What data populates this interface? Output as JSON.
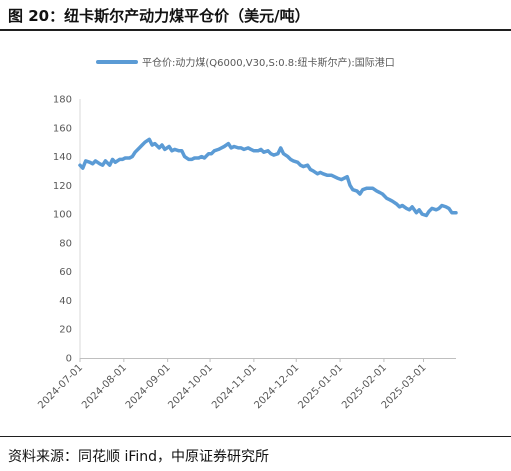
{
  "header": {
    "title": "图 20：纽卡斯尔产动力煤平仓价（美元/吨）"
  },
  "footer": {
    "source": "资料来源：同花顺 iFind，中原证券研究所"
  },
  "chart_data": {
    "type": "line",
    "series": [
      {
        "name": "平仓价:动力煤(Q6000,V30,S:0.8:纽卡斯尔产):国际港口",
        "color": "#5b9bd5",
        "points": [
          [
            "2024-07-01",
            134
          ],
          [
            "2024-07-03",
            132
          ],
          [
            "2024-07-05",
            137
          ],
          [
            "2024-07-08",
            136
          ],
          [
            "2024-07-10",
            135
          ],
          [
            "2024-07-12",
            137
          ],
          [
            "2024-07-15",
            135
          ],
          [
            "2024-07-17",
            134
          ],
          [
            "2024-07-19",
            137
          ],
          [
            "2024-07-22",
            134
          ],
          [
            "2024-07-24",
            138
          ],
          [
            "2024-07-26",
            136
          ],
          [
            "2024-07-29",
            138
          ],
          [
            "2024-07-31",
            138
          ],
          [
            "2024-08-02",
            139
          ],
          [
            "2024-08-05",
            139
          ],
          [
            "2024-08-07",
            140
          ],
          [
            "2024-08-09",
            143
          ],
          [
            "2024-08-12",
            146
          ],
          [
            "2024-08-14",
            148
          ],
          [
            "2024-08-16",
            150
          ],
          [
            "2024-08-19",
            152
          ],
          [
            "2024-08-21",
            148
          ],
          [
            "2024-08-23",
            149
          ],
          [
            "2024-08-26",
            146
          ],
          [
            "2024-08-28",
            148
          ],
          [
            "2024-08-30",
            145
          ],
          [
            "2024-09-02",
            147
          ],
          [
            "2024-09-04",
            144
          ],
          [
            "2024-09-06",
            145
          ],
          [
            "2024-09-09",
            144
          ],
          [
            "2024-09-11",
            144
          ],
          [
            "2024-09-13",
            140
          ],
          [
            "2024-09-16",
            138
          ],
          [
            "2024-09-18",
            138
          ],
          [
            "2024-09-20",
            139
          ],
          [
            "2024-09-23",
            139
          ],
          [
            "2024-09-25",
            140
          ],
          [
            "2024-09-27",
            139
          ],
          [
            "2024-09-30",
            142
          ],
          [
            "2024-10-02",
            142
          ],
          [
            "2024-10-04",
            144
          ],
          [
            "2024-10-07",
            145
          ],
          [
            "2024-10-09",
            146
          ],
          [
            "2024-10-11",
            147
          ],
          [
            "2024-10-14",
            149
          ],
          [
            "2024-10-16",
            146
          ],
          [
            "2024-10-18",
            147
          ],
          [
            "2024-10-21",
            146
          ],
          [
            "2024-10-23",
            146
          ],
          [
            "2024-10-25",
            145
          ],
          [
            "2024-10-28",
            146
          ],
          [
            "2024-10-30",
            145
          ],
          [
            "2024-11-01",
            144
          ],
          [
            "2024-11-04",
            144
          ],
          [
            "2024-11-06",
            145
          ],
          [
            "2024-11-08",
            143
          ],
          [
            "2024-11-11",
            144
          ],
          [
            "2024-11-13",
            142
          ],
          [
            "2024-11-15",
            141
          ],
          [
            "2024-11-18",
            142
          ],
          [
            "2024-11-20",
            146
          ],
          [
            "2024-11-22",
            142
          ],
          [
            "2024-11-25",
            140
          ],
          [
            "2024-11-27",
            138
          ],
          [
            "2024-11-29",
            137
          ],
          [
            "2024-12-02",
            136
          ],
          [
            "2024-12-04",
            134
          ],
          [
            "2024-12-06",
            133
          ],
          [
            "2024-12-09",
            134
          ],
          [
            "2024-12-11",
            131
          ],
          [
            "2024-12-13",
            130
          ],
          [
            "2024-12-16",
            128
          ],
          [
            "2024-12-18",
            129
          ],
          [
            "2024-12-20",
            128
          ],
          [
            "2024-12-23",
            127
          ],
          [
            "2024-12-26",
            127
          ],
          [
            "2024-12-30",
            125
          ],
          [
            "2025-01-02",
            124
          ],
          [
            "2025-01-06",
            126
          ],
          [
            "2025-01-08",
            120
          ],
          [
            "2025-01-10",
            117
          ],
          [
            "2025-01-13",
            116
          ],
          [
            "2025-01-15",
            114
          ],
          [
            "2025-01-17",
            117
          ],
          [
            "2025-01-20",
            118
          ],
          [
            "2025-01-22",
            118
          ],
          [
            "2025-01-24",
            118
          ],
          [
            "2025-01-27",
            116
          ],
          [
            "2025-01-29",
            115
          ],
          [
            "2025-01-31",
            114
          ],
          [
            "2025-02-03",
            111
          ],
          [
            "2025-02-05",
            110
          ],
          [
            "2025-02-07",
            109
          ],
          [
            "2025-02-10",
            107
          ],
          [
            "2025-02-12",
            105
          ],
          [
            "2025-02-14",
            106
          ],
          [
            "2025-02-17",
            104
          ],
          [
            "2025-02-19",
            103
          ],
          [
            "2025-02-21",
            105
          ],
          [
            "2025-02-24",
            101
          ],
          [
            "2025-02-26",
            103
          ],
          [
            "2025-02-28",
            100
          ],
          [
            "2025-03-03",
            99
          ],
          [
            "2025-03-05",
            102
          ],
          [
            "2025-03-07",
            104
          ],
          [
            "2025-03-10",
            103
          ],
          [
            "2025-03-12",
            104
          ],
          [
            "2025-03-14",
            106
          ],
          [
            "2025-03-17",
            105
          ],
          [
            "2025-03-19",
            104
          ],
          [
            "2025-03-21",
            101
          ],
          [
            "2025-03-24",
            101
          ]
        ]
      }
    ],
    "x_range": [
      "2024-07-01",
      "2025-03-24"
    ],
    "x_ticks": [
      "2024-07-01",
      "2024-08-01",
      "2024-09-01",
      "2024-10-01",
      "2024-11-01",
      "2024-12-01",
      "2025-01-01",
      "2025-02-01",
      "2025-03-01"
    ],
    "ylim": [
      0,
      180
    ],
    "y_ticks": [
      0,
      20,
      40,
      60,
      80,
      100,
      120,
      140,
      160,
      180
    ],
    "grid": false,
    "legend": "top"
  }
}
